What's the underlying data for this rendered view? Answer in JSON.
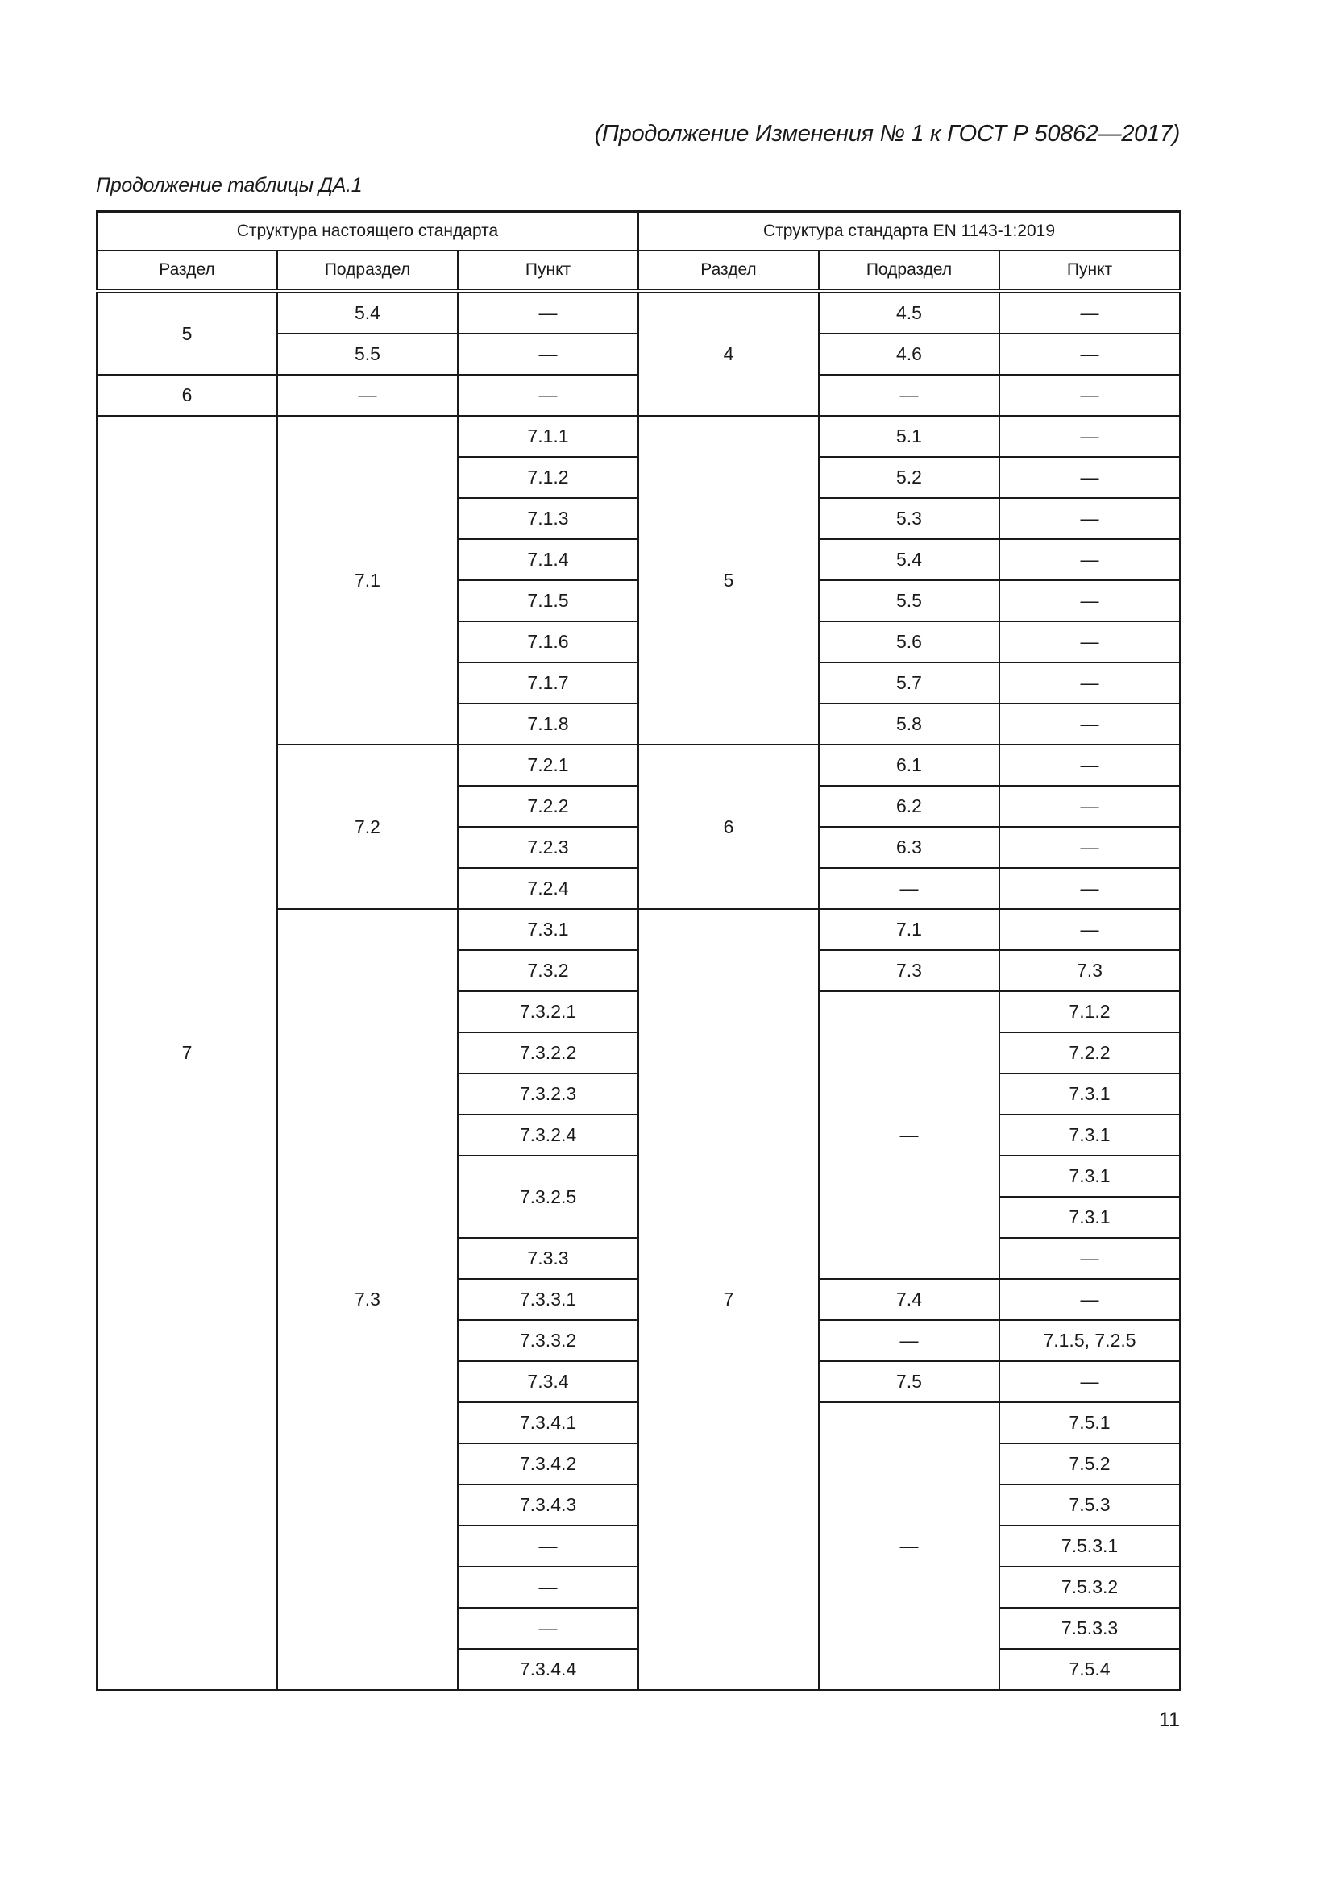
{
  "running_head": "(Продолжение Изменения № 1 к ГОСТ Р 50862—2017)",
  "caption": "Продолжение таблицы ДА.1",
  "table": {
    "group_headers": [
      "Структура настоящего стандарта",
      "Структура стандарта EN 1143-1:2019"
    ],
    "column_headers": [
      "Раздел",
      "Подраздел",
      "Пункт",
      "Раздел",
      "Подраздел",
      "Пункт"
    ],
    "rows": [
      [
        {
          "v": "5",
          "rs": 2
        },
        {
          "v": "5.4"
        },
        {
          "v": "—"
        },
        {
          "v": "4",
          "rs": 3
        },
        {
          "v": "4.5"
        },
        {
          "v": "—"
        }
      ],
      [
        {
          "v": "5.5"
        },
        {
          "v": "—"
        },
        {
          "v": "4.6"
        },
        {
          "v": "—"
        }
      ],
      [
        {
          "v": "6"
        },
        {
          "v": "—"
        },
        {
          "v": "—"
        },
        {
          "v": "—"
        },
        {
          "v": "—"
        }
      ],
      [
        {
          "v": "7",
          "rs": 31
        },
        {
          "v": "7.1",
          "rs": 8
        },
        {
          "v": "7.1.1"
        },
        {
          "v": "5",
          "rs": 8
        },
        {
          "v": "5.1"
        },
        {
          "v": "—"
        }
      ],
      [
        {
          "v": "7.1.2"
        },
        {
          "v": "5.2"
        },
        {
          "v": "—"
        }
      ],
      [
        {
          "v": "7.1.3"
        },
        {
          "v": "5.3"
        },
        {
          "v": "—"
        }
      ],
      [
        {
          "v": "7.1.4"
        },
        {
          "v": "5.4"
        },
        {
          "v": "—"
        }
      ],
      [
        {
          "v": "7.1.5"
        },
        {
          "v": "5.5"
        },
        {
          "v": "—"
        }
      ],
      [
        {
          "v": "7.1.6"
        },
        {
          "v": "5.6"
        },
        {
          "v": "—"
        }
      ],
      [
        {
          "v": "7.1.7"
        },
        {
          "v": "5.7"
        },
        {
          "v": "—"
        }
      ],
      [
        {
          "v": "7.1.8"
        },
        {
          "v": "5.8"
        },
        {
          "v": "—"
        }
      ],
      [
        {
          "v": "7.2",
          "rs": 4
        },
        {
          "v": "7.2.1"
        },
        {
          "v": "6",
          "rs": 4
        },
        {
          "v": "6.1"
        },
        {
          "v": "—"
        }
      ],
      [
        {
          "v": "7.2.2"
        },
        {
          "v": "6.2"
        },
        {
          "v": "—"
        }
      ],
      [
        {
          "v": "7.2.3"
        },
        {
          "v": "6.3"
        },
        {
          "v": "—"
        }
      ],
      [
        {
          "v": "7.2.4"
        },
        {
          "v": "—"
        },
        {
          "v": "—"
        }
      ],
      [
        {
          "v": "7.3",
          "rs": 19
        },
        {
          "v": "7.3.1"
        },
        {
          "v": "7",
          "rs": 19
        },
        {
          "v": "7.1"
        },
        {
          "v": "—"
        }
      ],
      [
        {
          "v": "7.3.2"
        },
        {
          "v": "7.3"
        },
        {
          "v": "7.3"
        }
      ],
      [
        {
          "v": "7.3.2.1"
        },
        {
          "v": "—",
          "rs": 7
        },
        {
          "v": "7.1.2"
        }
      ],
      [
        {
          "v": "7.3.2.2"
        },
        {
          "v": "7.2.2"
        }
      ],
      [
        {
          "v": "7.3.2.3"
        },
        {
          "v": "7.3.1"
        }
      ],
      [
        {
          "v": "7.3.2.4"
        },
        {
          "v": "7.3.1"
        }
      ],
      [
        {
          "v": "7.3.2.5",
          "rs": 2
        },
        {
          "v": "7.3.1"
        }
      ],
      [
        {
          "v": "7.3.1"
        }
      ],
      [
        {
          "v": "7.3.3"
        },
        {
          "v": "—"
        }
      ],
      [
        {
          "v": "7.3.3.1"
        },
        {
          "v": "7.4"
        },
        {
          "v": "—"
        }
      ],
      [
        {
          "v": "7.3.3.2"
        },
        {
          "v": "—"
        },
        {
          "v": "7.1.5, 7.2.5"
        }
      ],
      [
        {
          "v": "7.3.4"
        },
        {
          "v": "7.5"
        },
        {
          "v": "—"
        }
      ],
      [
        {
          "v": "7.3.4.1"
        },
        {
          "v": "—",
          "rs": 8
        },
        {
          "v": "7.5.1"
        }
      ],
      [
        {
          "v": "7.3.4.2"
        },
        {
          "v": "7.5.2"
        }
      ],
      [
        {
          "v": "7.3.4.3"
        },
        {
          "v": "7.5.3"
        }
      ],
      [
        {
          "v": "—"
        },
        {
          "v": "7.5.3.1"
        }
      ],
      [
        {
          "v": "—"
        },
        {
          "v": "7.5.3.2"
        }
      ],
      [
        {
          "v": "—"
        },
        {
          "v": "7.5.3.3"
        }
      ],
      [
        {
          "v": "7.3.4.4"
        },
        {
          "v": "7.5.4"
        }
      ]
    ]
  },
  "page_number": "11"
}
